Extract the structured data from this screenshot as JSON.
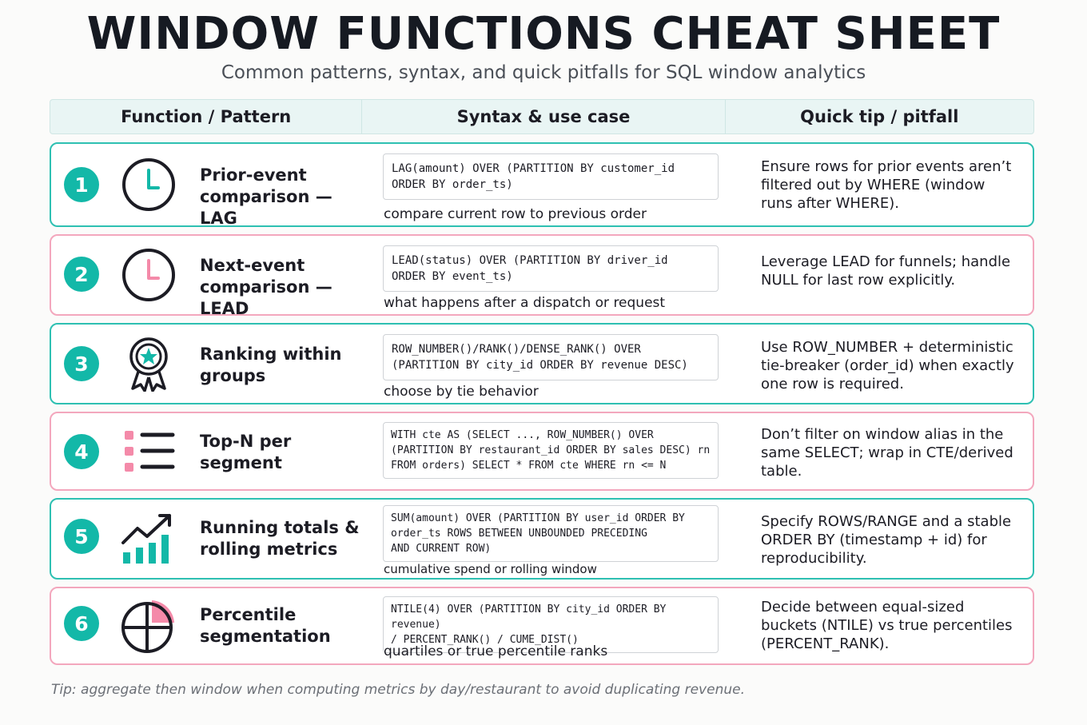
{
  "title": "WINDOW FUNCTIONS CHEAT SHEET",
  "subtitle": "Common patterns, syntax, and quick pitfalls for SQL window analytics",
  "columns": [
    "Function / Pattern",
    "Syntax & use case",
    "Quick tip / pitfall"
  ],
  "rows": [
    {
      "number": "1",
      "icon": "clock-icon",
      "name": "Prior-event comparison — LAG",
      "code": "LAG(amount) OVER (PARTITION BY customer_id\nORDER BY order_ts)",
      "use_case": "compare current row to previous order",
      "tip": "Ensure rows for prior events aren’t filtered out by WHERE (window runs after WHERE).",
      "border_color": "#2ec0b2"
    },
    {
      "number": "2",
      "icon": "clock-icon",
      "name": "Next-event comparison — LEAD",
      "code": "LEAD(status) OVER (PARTITION BY driver_id\nORDER BY event_ts)",
      "use_case": "what happens after a dispatch or request",
      "tip": "Leverage LEAD for funnels; handle NULL for last row explicitly.",
      "border_color": "#f3a7bd"
    },
    {
      "number": "3",
      "icon": "award-ribbon-icon",
      "name": "Ranking within groups",
      "code": "ROW_NUMBER()/RANK()/DENSE_RANK() OVER\n(PARTITION BY city_id ORDER BY revenue DESC)",
      "use_case": "choose by tie behavior",
      "tip": "Use ROW_NUMBER + deterministic tie-breaker (order_id) when exactly one row is required.",
      "border_color": "#2ec0b2"
    },
    {
      "number": "4",
      "icon": "list-icon",
      "name": "Top-N per segment",
      "code": "WITH cte AS (SELECT ..., ROW_NUMBER() OVER\n(PARTITION BY restaurant_id ORDER BY sales DESC) rn\nFROM orders) SELECT * FROM cte WHERE rn <= N",
      "use_case": "",
      "tip": "Don’t filter on window alias in the same SELECT; wrap in CTE/derived table.",
      "border_color": "#f3a7bd"
    },
    {
      "number": "5",
      "icon": "trend-chart-icon",
      "name": "Running totals & rolling metrics",
      "code": "SUM(amount) OVER (PARTITION BY user_id ORDER BY\norder_ts ROWS BETWEEN UNBOUNDED PRECEDING\nAND CURRENT ROW)",
      "use_case": "cumulative spend or rolling window",
      "tip": "Specify ROWS/RANGE and a stable ORDER BY (timestamp + id) for reproducibility.",
      "border_color": "#2ec0b2"
    },
    {
      "number": "6",
      "icon": "pie-chart-icon",
      "name": "Percentile segmentation",
      "code": "NTILE(4) OVER (PARTITION BY city_id ORDER BY revenue)\n/ PERCENT_RANK() / CUME_DIST()",
      "use_case": "quartiles or true percentile ranks",
      "tip": "Decide between equal-sized buckets (NTILE) vs true percentiles (PERCENT_RANK).",
      "border_color": "#f3a7bd"
    }
  ],
  "footer": "Tip: aggregate then window when computing metrics by day/restaurant to avoid duplicating revenue.",
  "colors": {
    "teal": "#13b8a8",
    "pink": "#f48aa9",
    "dark": "#1c1c24"
  }
}
